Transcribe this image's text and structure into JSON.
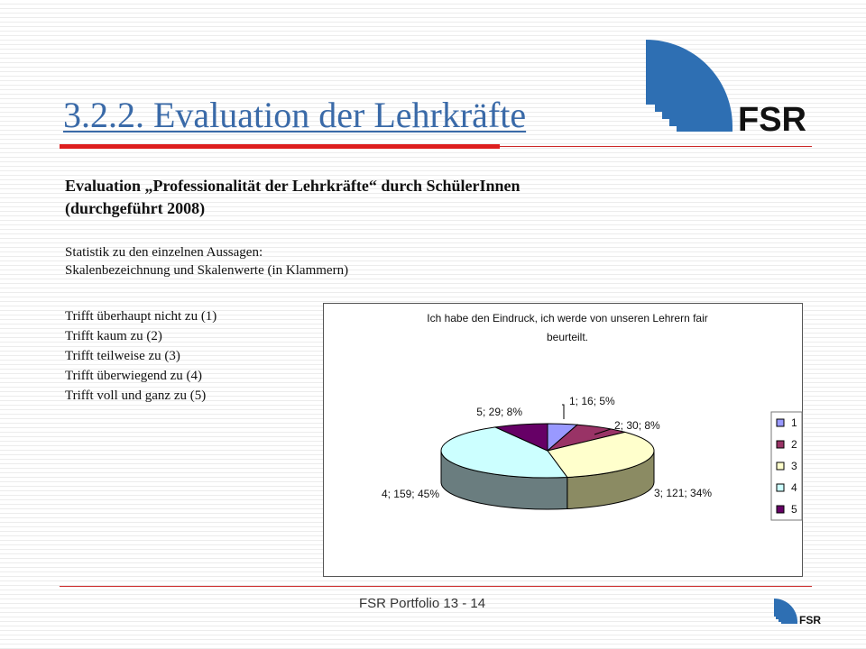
{
  "title": "3.2.2. Evaluation der Lehrkräfte",
  "logo_text": "FSR",
  "heading": {
    "line1": "Evaluation „Professionalität der Lehrkräfte“ durch SchülerInnen",
    "line2": "(durchgeführt 2008)"
  },
  "stats": {
    "line1": "Statistik zu den einzelnen Aussagen:",
    "line2": "Skalenbezeichnung und Skalenwerte (in Klammern)"
  },
  "scale": [
    "Trifft überhaupt nicht zu (1)",
    "Trifft kaum zu (2)",
    "Trifft teilweise zu (3)",
    "Trifft überwiegend zu (4)",
    "Trifft voll und ganz zu (5)"
  ],
  "footer": "FSR Portfolio 13 - 14",
  "colors": {
    "title": "#3a6aa8",
    "accent_red": "#dd1f1f",
    "logo_blue": "#2e6fb3"
  },
  "chart_data": {
    "type": "pie",
    "title_line1": "Ich habe den Eindruck, ich werde von unseren Lehrern fair",
    "title_line2": "beurteilt.",
    "legend_position": "right",
    "slices": [
      {
        "name": "1",
        "value": 16,
        "percent": 5,
        "label": "1; 16; 5%",
        "color": "#9999ff",
        "side": "#6f6fc4"
      },
      {
        "name": "2",
        "value": 30,
        "percent": 8,
        "label": "2; 30; 8%",
        "color": "#993366",
        "side": "#6e2349"
      },
      {
        "name": "3",
        "value": 121,
        "percent": 34,
        "label": "3; 121; 34%",
        "color": "#ffffcc",
        "side": "#8b8b63"
      },
      {
        "name": "4",
        "value": 159,
        "percent": 45,
        "label": "4; 159; 45%",
        "color": "#ccffff",
        "side": "#6a7d7f"
      },
      {
        "name": "5",
        "value": 29,
        "percent": 8,
        "label": "5; 29; 8%",
        "color": "#660066",
        "side": "#3e003e"
      }
    ]
  }
}
